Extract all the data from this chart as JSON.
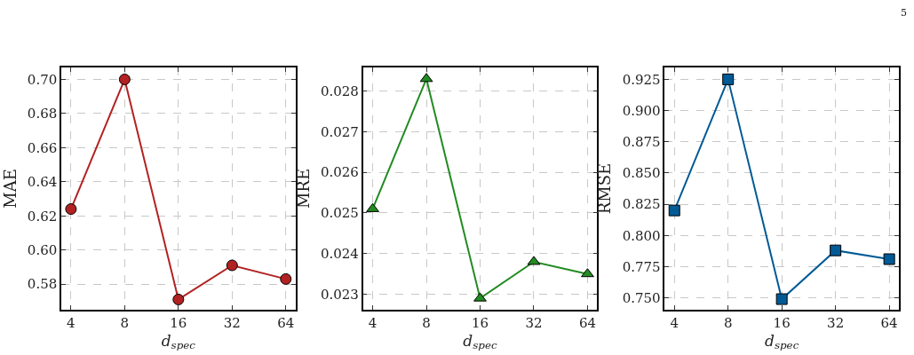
{
  "chart_data": [
    {
      "type": "line",
      "categories": [
        "4",
        "8",
        "16",
        "32",
        "64"
      ],
      "xlabel": "d$_{spec}$",
      "ylabel": "MAE",
      "series": [
        {
          "color": "#b22222",
          "values": [
            0.624,
            0.7,
            0.571,
            0.591,
            0.583
          ]
        }
      ],
      "ylim": [
        0.565,
        0.707
      ],
      "yticks": [
        0.58,
        {
          "value": 0.6,
          "label": "0.60"
        },
        0.62,
        0.64,
        0.66,
        0.68,
        {
          "value": 0.7,
          "label": "0.70"
        }
      ],
      "grid": true,
      "marker": "circle"
    },
    {
      "type": "line",
      "categories": [
        "4",
        "8",
        "16",
        "32",
        "64"
      ],
      "xlabel": "d$_{spec}$",
      "ylabel": "MRE",
      "series": [
        {
          "color": "#228b22",
          "values": [
            0.0251,
            0.0283,
            0.0229,
            0.0238,
            0.0235
          ]
        }
      ],
      "ylim": [
        0.02262,
        0.02858
      ],
      "yticks": [
        0.023,
        0.024,
        0.025,
        0.026,
        0.027,
        0.028
      ],
      "grid": true,
      "marker": "triangle"
    },
    {
      "type": "line",
      "categories": [
        "4",
        "8",
        "16",
        "32",
        "64"
      ],
      "xlabel": "d$_{spec}$",
      "ylabel": "RMSE",
      "series": [
        {
          "color": "#005a96",
          "values": [
            0.82,
            0.925,
            0.749,
            0.788,
            0.781
          ]
        }
      ],
      "ylim": [
        0.7405,
        0.9345
      ],
      "yticks": [
        {
          "value": 0.75,
          "label": "0.750"
        },
        0.775,
        {
          "value": 0.8,
          "label": "0.800"
        },
        0.825,
        {
          "value": 0.85,
          "label": "0.850"
        },
        0.875,
        {
          "value": 0.9,
          "label": "0.900"
        },
        0.925
      ],
      "grid": true,
      "marker": "square",
      "annotations": [
        "5"
      ]
    }
  ]
}
